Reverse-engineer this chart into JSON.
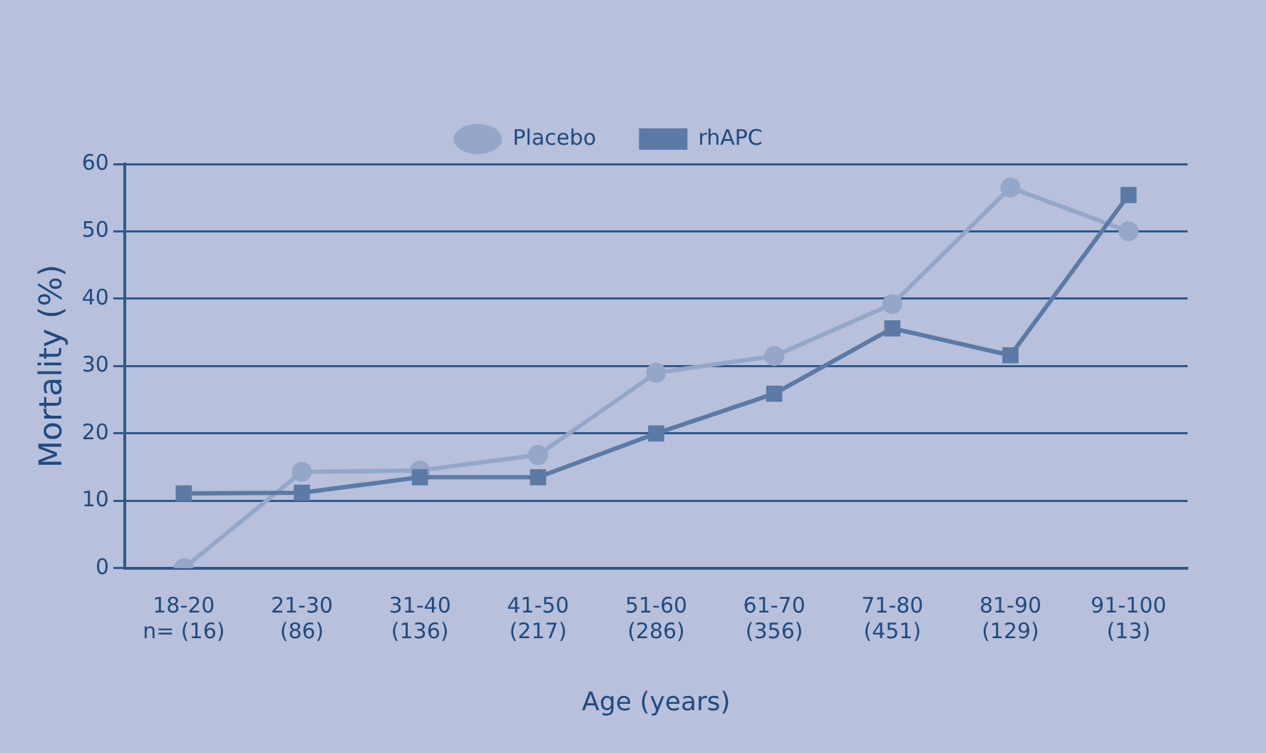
{
  "chart_data": {
    "type": "line",
    "xlabel": "Age (years)",
    "ylabel": "Mortality (%)",
    "categories": [
      "18-20\nn= (16)",
      "21-30\n(86)",
      "31-40\n(136)",
      "41-50\n(217)",
      "51-60\n(286)",
      "61-70\n(356)",
      "71-80\n(451)",
      "81-90\n(129)",
      "91-100\n(13)"
    ],
    "series": [
      {
        "name": "Placebo",
        "color": "#94a7c9",
        "marker": "circle",
        "values": [
          0,
          14.3,
          14.5,
          16.8,
          29,
          31.5,
          39.2,
          56.5,
          50
        ]
      },
      {
        "name": "rhAPC",
        "color": "#5b7aa6",
        "marker": "square",
        "values": [
          11.1,
          11.2,
          13.5,
          13.5,
          20,
          25.9,
          35.6,
          31.6,
          55.4
        ]
      }
    ],
    "ylim": [
      0,
      60
    ],
    "yticks": [
      0,
      10,
      20,
      30,
      40,
      50,
      60
    ],
    "grid": "y",
    "legend": "top"
  }
}
